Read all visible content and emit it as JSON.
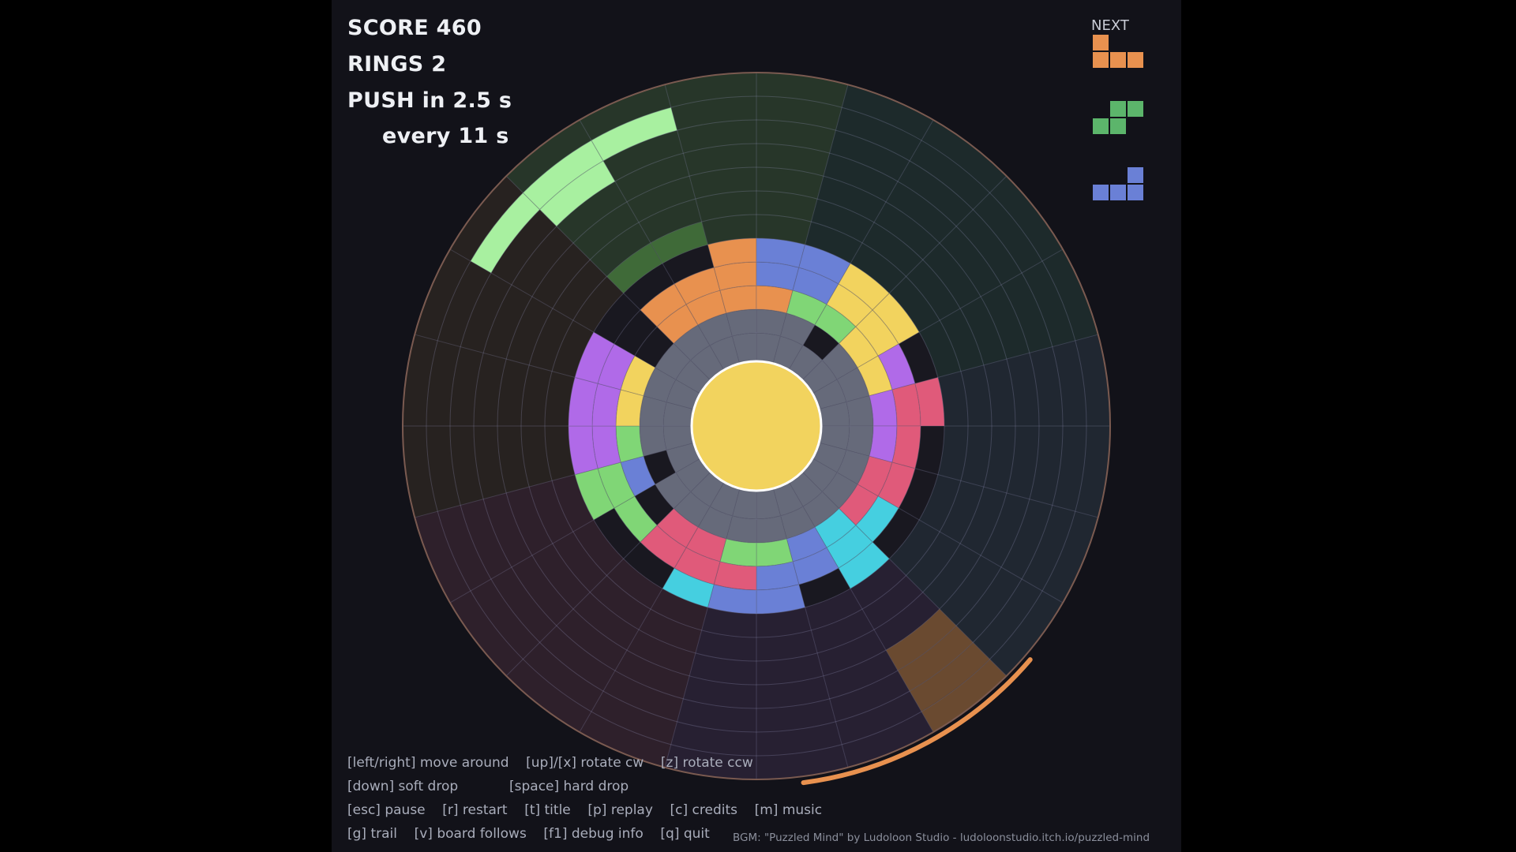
{
  "hud": {
    "score": "SCORE  460",
    "rings": "RINGS  2",
    "push": "PUSH in 2.5 s",
    "every": "every 11 s"
  },
  "next": {
    "label": "NEXT",
    "pieces": [
      {
        "name": "orange-l",
        "color": "#e8914f",
        "cells": [
          [
            0,
            0
          ],
          [
            0,
            1
          ],
          [
            1,
            1
          ],
          [
            2,
            1
          ]
        ]
      },
      {
        "name": "green-s",
        "color": "#5cb56b",
        "cells": [
          [
            1,
            0
          ],
          [
            2,
            0
          ],
          [
            0,
            1
          ],
          [
            1,
            1
          ]
        ]
      },
      {
        "name": "blue-l",
        "color": "#6a80d6",
        "cells": [
          [
            2,
            0
          ],
          [
            0,
            1
          ],
          [
            1,
            1
          ],
          [
            2,
            1
          ]
        ]
      }
    ]
  },
  "help": {
    "line1": "[left/right] move around    [up]/[x] rotate cw    [z] rotate ccw",
    "line2": "[down] soft drop            [space] hard drop",
    "line3": "[esc] pause    [r] restart    [t] title    [p] replay    [c] credits    [m] music",
    "line4": "[g] trail    [v] board follows    [f1] debug info    [q] quit"
  },
  "credit": "BGM: \"Puzzled Mind\" by Ludoloon Studio - ludoloonstudio.itch.io/puzzled-mind",
  "colors": {
    "core": "#f2d35e",
    "ring_gray": "#666a7a",
    "orange": "#e8914f",
    "blue": "#6a80d6",
    "green": "#80d676",
    "yellow": "#f2d35e",
    "purple": "#b06ae8",
    "pink": "#e05a7a",
    "cyan": "#45cfe0",
    "active_piece": "#a8f0a0",
    "ghost": "#3f6a38",
    "trail_orange": "#e8914f"
  },
  "board": {
    "segments": 24,
    "rings": 12,
    "cells": [
      {
        "ring": 0,
        "seg": 0,
        "color": "gray"
      },
      {
        "ring": 0,
        "seg": 1,
        "color": "gray"
      },
      {
        "ring": 0,
        "seg": 2,
        "color": "gray"
      },
      {
        "ring": 0,
        "seg": 3,
        "color": "gray"
      },
      {
        "ring": 0,
        "seg": 4,
        "color": "gray"
      },
      {
        "ring": 0,
        "seg": 5,
        "color": "gray"
      },
      {
        "ring": 0,
        "seg": 6,
        "color": "gray"
      },
      {
        "ring": 0,
        "seg": 7,
        "color": "gray"
      },
      {
        "ring": 0,
        "seg": 8,
        "color": "gray"
      },
      {
        "ring": 0,
        "seg": 9,
        "color": "gray"
      },
      {
        "ring": 0,
        "seg": 10,
        "color": "gray"
      },
      {
        "ring": 0,
        "seg": 11,
        "color": "gray"
      },
      {
        "ring": 0,
        "seg": 12,
        "color": "gray"
      },
      {
        "ring": 0,
        "seg": 13,
        "color": "gray"
      },
      {
        "ring": 0,
        "seg": 14,
        "color": "gray"
      },
      {
        "ring": 0,
        "seg": 15,
        "color": "gray"
      },
      {
        "ring": 0,
        "seg": 16,
        "color": "gray"
      },
      {
        "ring": 0,
        "seg": 17,
        "color": "gray"
      },
      {
        "ring": 0,
        "seg": 18,
        "color": "gray"
      },
      {
        "ring": 0,
        "seg": 19,
        "color": "gray"
      },
      {
        "ring": 0,
        "seg": 20,
        "color": "gray"
      },
      {
        "ring": 0,
        "seg": 21,
        "color": "gray"
      },
      {
        "ring": 0,
        "seg": 22,
        "color": "gray"
      },
      {
        "ring": 0,
        "seg": 23,
        "color": "gray"
      },
      {
        "ring": 1,
        "seg": 0,
        "color": "gray"
      },
      {
        "ring": 1,
        "seg": 1,
        "color": "gray"
      },
      {
        "ring": 1,
        "seg": 3,
        "color": "gray"
      },
      {
        "ring": 1,
        "seg": 4,
        "color": "gray"
      },
      {
        "ring": 1,
        "seg": 5,
        "color": "gray"
      },
      {
        "ring": 1,
        "seg": 6,
        "color": "gray"
      },
      {
        "ring": 1,
        "seg": 7,
        "color": "gray"
      },
      {
        "ring": 1,
        "seg": 8,
        "color": "gray"
      },
      {
        "ring": 1,
        "seg": 9,
        "color": "gray"
      },
      {
        "ring": 1,
        "seg": 10,
        "color": "gray"
      },
      {
        "ring": 1,
        "seg": 11,
        "color": "gray"
      },
      {
        "ring": 1,
        "seg": 12,
        "color": "gray"
      },
      {
        "ring": 1,
        "seg": 13,
        "color": "gray"
      },
      {
        "ring": 1,
        "seg": 14,
        "color": "gray"
      },
      {
        "ring": 1,
        "seg": 15,
        "color": "gray"
      },
      {
        "ring": 1,
        "seg": 17,
        "color": "gray"
      },
      {
        "ring": 1,
        "seg": 18,
        "color": "gray"
      },
      {
        "ring": 1,
        "seg": 19,
        "color": "gray"
      },
      {
        "ring": 1,
        "seg": 20,
        "color": "gray"
      },
      {
        "ring": 1,
        "seg": 21,
        "color": "gray"
      },
      {
        "ring": 1,
        "seg": 22,
        "color": "gray"
      },
      {
        "ring": 1,
        "seg": 23,
        "color": "gray"
      },
      {
        "ring": 2,
        "seg": 21,
        "color": "orange"
      },
      {
        "ring": 2,
        "seg": 22,
        "color": "orange"
      },
      {
        "ring": 2,
        "seg": 23,
        "color": "orange"
      },
      {
        "ring": 2,
        "seg": 0,
        "color": "orange"
      },
      {
        "ring": 2,
        "seg": 1,
        "color": "green"
      },
      {
        "ring": 2,
        "seg": 2,
        "color": "green"
      },
      {
        "ring": 2,
        "seg": 3,
        "color": "yellow"
      },
      {
        "ring": 2,
        "seg": 4,
        "color": "yellow"
      },
      {
        "ring": 2,
        "seg": 5,
        "color": "purple"
      },
      {
        "ring": 2,
        "seg": 6,
        "color": "purple"
      },
      {
        "ring": 2,
        "seg": 7,
        "color": "pink"
      },
      {
        "ring": 2,
        "seg": 8,
        "color": "pink"
      },
      {
        "ring": 2,
        "seg": 9,
        "color": "cyan"
      },
      {
        "ring": 2,
        "seg": 10,
        "color": "blue"
      },
      {
        "ring": 2,
        "seg": 11,
        "color": "green"
      },
      {
        "ring": 2,
        "seg": 12,
        "color": "green"
      },
      {
        "ring": 2,
        "seg": 13,
        "color": "pink"
      },
      {
        "ring": 2,
        "seg": 14,
        "color": "pink"
      },
      {
        "ring": 2,
        "seg": 16,
        "color": "blue"
      },
      {
        "ring": 2,
        "seg": 17,
        "color": "green"
      },
      {
        "ring": 2,
        "seg": 18,
        "color": "yellow"
      },
      {
        "ring": 2,
        "seg": 19,
        "color": "yellow"
      },
      {
        "ring": 3,
        "seg": 22,
        "color": "orange"
      },
      {
        "ring": 3,
        "seg": 23,
        "color": "orange"
      },
      {
        "ring": 3,
        "seg": 0,
        "color": "blue"
      },
      {
        "ring": 3,
        "seg": 1,
        "color": "blue"
      },
      {
        "ring": 3,
        "seg": 2,
        "color": "yellow"
      },
      {
        "ring": 3,
        "seg": 3,
        "color": "yellow"
      },
      {
        "ring": 3,
        "seg": 4,
        "color": "purple"
      },
      {
        "ring": 3,
        "seg": 5,
        "color": "pink"
      },
      {
        "ring": 3,
        "seg": 6,
        "color": "pink"
      },
      {
        "ring": 3,
        "seg": 7,
        "color": "pink"
      },
      {
        "ring": 3,
        "seg": 8,
        "color": "cyan"
      },
      {
        "ring": 3,
        "seg": 9,
        "color": "cyan"
      },
      {
        "ring": 3,
        "seg": 10,
        "color": "blue"
      },
      {
        "ring": 3,
        "seg": 11,
        "color": "blue"
      },
      {
        "ring": 3,
        "seg": 12,
        "color": "pink"
      },
      {
        "ring": 3,
        "seg": 13,
        "color": "pink"
      },
      {
        "ring": 3,
        "seg": 14,
        "color": "pink"
      },
      {
        "ring": 3,
        "seg": 15,
        "color": "green"
      },
      {
        "ring": 3,
        "seg": 16,
        "color": "green"
      },
      {
        "ring": 3,
        "seg": 17,
        "color": "purple"
      },
      {
        "ring": 3,
        "seg": 18,
        "color": "purple"
      },
      {
        "ring": 3,
        "seg": 19,
        "color": "purple"
      },
      {
        "ring": 3,
        "seg": 21,
        "color": "orange"
      },
      {
        "ring": 4,
        "seg": 23,
        "color": "orange"
      },
      {
        "ring": 4,
        "seg": 0,
        "color": "blue"
      },
      {
        "ring": 4,
        "seg": 1,
        "color": "blue"
      },
      {
        "ring": 4,
        "seg": 2,
        "color": "yellow"
      },
      {
        "ring": 4,
        "seg": 3,
        "color": "yellow"
      },
      {
        "ring": 4,
        "seg": 5,
        "color": "pink"
      },
      {
        "ring": 4,
        "seg": 9,
        "color": "cyan"
      },
      {
        "ring": 4,
        "seg": 11,
        "color": "blue"
      },
      {
        "ring": 4,
        "seg": 12,
        "color": "blue"
      },
      {
        "ring": 4,
        "seg": 13,
        "color": "cyan"
      },
      {
        "ring": 4,
        "seg": 16,
        "color": "green"
      },
      {
        "ring": 4,
        "seg": 17,
        "color": "purple"
      },
      {
        "ring": 4,
        "seg": 18,
        "color": "purple"
      },
      {
        "ring": 4,
        "seg": 19,
        "color": "purple"
      },
      {
        "ring": 5,
        "seg": 21,
        "color": "ghost"
      },
      {
        "ring": 5,
        "seg": 22,
        "color": "ghost"
      },
      {
        "ring": 10,
        "seg": 20,
        "color": "active"
      },
      {
        "ring": 10,
        "seg": 21,
        "color": "active"
      },
      {
        "ring": 10,
        "seg": 22,
        "color": "active"
      },
      {
        "ring": 9,
        "seg": 21,
        "color": "active"
      },
      {
        "ring": 10,
        "seg": 9,
        "color": "ghost_orange"
      },
      {
        "ring": 9,
        "seg": 9,
        "color": "ghost_orange"
      },
      {
        "ring": 8,
        "seg": 9,
        "color": "ghost_orange"
      },
      {
        "ring": 11,
        "seg": 9,
        "color": "ghost_orange"
      }
    ]
  }
}
